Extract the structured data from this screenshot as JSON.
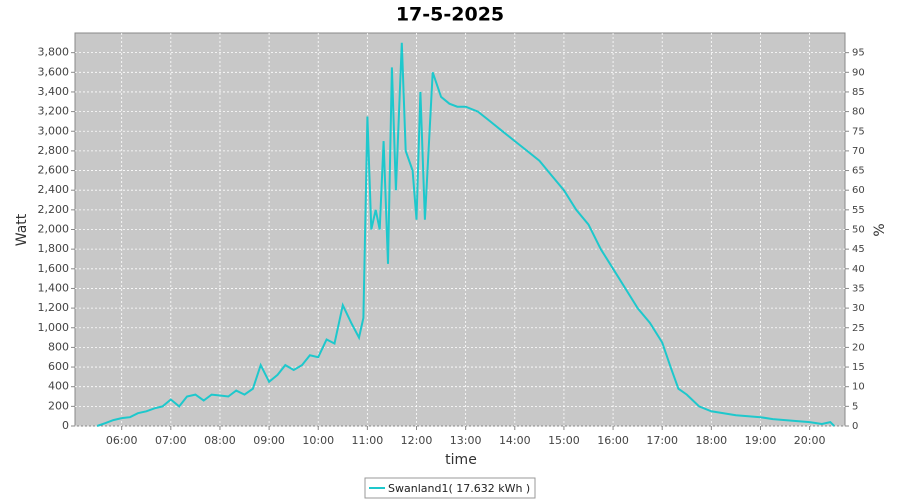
{
  "chart_data": {
    "type": "line",
    "title": "17-5-2025",
    "xlabel": "time",
    "ylabel": "Watt",
    "y2label": "%",
    "x": [
      5.5,
      5.67,
      5.83,
      6.0,
      6.17,
      6.33,
      6.5,
      6.67,
      6.83,
      7.0,
      7.17,
      7.33,
      7.5,
      7.67,
      7.83,
      8.0,
      8.17,
      8.33,
      8.5,
      8.67,
      8.83,
      9.0,
      9.17,
      9.33,
      9.5,
      9.67,
      9.83,
      10.0,
      10.17,
      10.33,
      10.5,
      10.67,
      10.83,
      10.92,
      11.0,
      11.08,
      11.17,
      11.25,
      11.33,
      11.42,
      11.5,
      11.58,
      11.7,
      11.78,
      11.92,
      12.0,
      12.08,
      12.17,
      12.33,
      12.5,
      12.67,
      12.83,
      13.0,
      13.25,
      13.5,
      13.75,
      14.0,
      14.25,
      14.5,
      14.75,
      15.0,
      15.25,
      15.5,
      15.75,
      16.0,
      16.25,
      16.5,
      16.75,
      17.0,
      17.17,
      17.33,
      17.5,
      17.75,
      18.0,
      18.25,
      18.5,
      18.75,
      19.0,
      19.25,
      19.5,
      19.75,
      20.0,
      20.25,
      20.42,
      20.5
    ],
    "series": [
      {
        "name": "Swanland1( 17.632 kWh )",
        "color": "#1ec8cc",
        "values": [
          0,
          30,
          60,
          80,
          90,
          130,
          150,
          180,
          200,
          270,
          200,
          300,
          320,
          260,
          320,
          310,
          300,
          360,
          320,
          380,
          620,
          450,
          520,
          620,
          570,
          620,
          720,
          700,
          880,
          840,
          1230,
          1050,
          900,
          1100,
          3150,
          2000,
          2200,
          2000,
          2900,
          1650,
          3650,
          2400,
          3900,
          2800,
          2600,
          2100,
          3400,
          2100,
          3600,
          3350,
          3280,
          3250,
          3250,
          3200,
          3100,
          3000,
          2900,
          2800,
          2700,
          2550,
          2400,
          2200,
          2050,
          1800,
          1600,
          1400,
          1200,
          1050,
          850,
          600,
          380,
          320,
          200,
          150,
          130,
          110,
          100,
          90,
          70,
          60,
          50,
          40,
          20,
          40,
          0
        ]
      }
    ],
    "xlim": [
      5.05,
      20.72
    ],
    "xticks": [
      {
        "value": 6,
        "label": "06:00"
      },
      {
        "value": 7,
        "label": "07:00"
      },
      {
        "value": 8,
        "label": "08:00"
      },
      {
        "value": 9,
        "label": "09:00"
      },
      {
        "value": 10,
        "label": "10:00"
      },
      {
        "value": 11,
        "label": "11:00"
      },
      {
        "value": 12,
        "label": "12:00"
      },
      {
        "value": 13,
        "label": "13:00"
      },
      {
        "value": 14,
        "label": "14:00"
      },
      {
        "value": 15,
        "label": "15:00"
      },
      {
        "value": 16,
        "label": "16:00"
      },
      {
        "value": 17,
        "label": "17:00"
      },
      {
        "value": 18,
        "label": "18:00"
      },
      {
        "value": 19,
        "label": "19:00"
      },
      {
        "value": 20,
        "label": "20:00"
      }
    ],
    "ylim": [
      0,
      4000
    ],
    "yticks": [
      0,
      200,
      400,
      600,
      800,
      {
        "value": 1000,
        "label": "1,000"
      },
      {
        "value": 1200,
        "label": "1,200"
      },
      {
        "value": 1400,
        "label": "1,400"
      },
      {
        "value": 1600,
        "label": "1,600"
      },
      {
        "value": 1800,
        "label": "1,800"
      },
      {
        "value": 2000,
        "label": "2,000"
      },
      {
        "value": 2200,
        "label": "2,200"
      },
      {
        "value": 2400,
        "label": "2,400"
      },
      {
        "value": 2600,
        "label": "2,600"
      },
      {
        "value": 2800,
        "label": "2,800"
      },
      {
        "value": 3000,
        "label": "3,000"
      },
      {
        "value": 3200,
        "label": "3,200"
      },
      {
        "value": 3400,
        "label": "3,400"
      },
      {
        "value": 3600,
        "label": "3,600"
      },
      {
        "value": 3800,
        "label": "3,800"
      }
    ],
    "y2lim": [
      0,
      100
    ],
    "y2ticks": [
      0,
      5,
      10,
      15,
      20,
      25,
      30,
      35,
      40,
      45,
      50,
      55,
      60,
      65,
      70,
      75,
      80,
      85,
      90,
      95
    ],
    "grid": true
  }
}
